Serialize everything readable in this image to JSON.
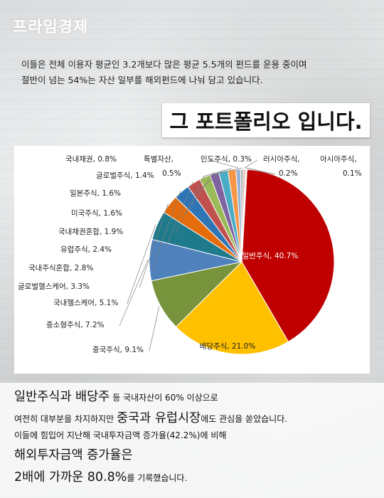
{
  "brand": {
    "logo_text": "프라임경제"
  },
  "intro": {
    "line1": "이들은 전체 이용자 평균인 3.2개보다 많은 평균 5.5개의 펀드를 운용 중이며",
    "line2": "절반이 넘는 54%는 자산 일부를 해외펀드에 나눠 담고 있습니다."
  },
  "headline": {
    "text": "그 포트폴리오 입니다."
  },
  "chart_data": {
    "type": "pie",
    "slices": [
      {
        "label": "일반주식, 40.7%",
        "name": "일반주식",
        "value": 40.7,
        "color": "#c00000"
      },
      {
        "label": "배당주식, 21.0%",
        "name": "배당주식",
        "value": 21.0,
        "color": "#ffc000"
      },
      {
        "label": "중국주식, 9.1%",
        "name": "중국주식",
        "value": 9.1,
        "color": "#77933c"
      },
      {
        "label": "중소형주식, 7.2%",
        "name": "중소형주식",
        "value": 7.2,
        "color": "#4f81bd"
      },
      {
        "label": "국내헬스케어, 5.1%",
        "name": "국내헬스케어",
        "value": 5.1,
        "color": "#1f7a8c"
      },
      {
        "label": "글로벌헬스케어, 3.3%",
        "name": "글로벌헬스케어",
        "value": 3.3,
        "color": "#e46c0a"
      },
      {
        "label": "국내주식혼합, 2.8%",
        "name": "국내주식혼합",
        "value": 2.8,
        "color": "#2e75b6"
      },
      {
        "label": "유럽주식, 2.4%",
        "name": "유럽주식",
        "value": 2.4,
        "color": "#c0504d"
      },
      {
        "label": "국내채권혼합, 1.9%",
        "name": "국내채권혼합",
        "value": 1.9,
        "color": "#9bbb59"
      },
      {
        "label": "미국주식, 1.6%",
        "name": "미국주식",
        "value": 1.6,
        "color": "#8064a2"
      },
      {
        "label": "일본주식, 1.6%",
        "name": "일본주식",
        "value": 1.6,
        "color": "#4bacc6"
      },
      {
        "label": "글로벌주식, 1.4%",
        "name": "글로벌주식",
        "value": 1.4,
        "color": "#f79646"
      },
      {
        "label": "국내채권, 0.8%",
        "name": "국내채권",
        "value": 0.8,
        "color": "#95b3d7"
      },
      {
        "label": "특별자산, 0.5%",
        "name": "특별자산",
        "value": 0.5,
        "color": "#b7b7b7"
      },
      {
        "label": "인도주식, 0.3%",
        "name": "인도주식",
        "value": 0.3,
        "color": "#d99694"
      },
      {
        "label": "러시아주식, 0.2%",
        "name": "러시아주식",
        "value": 0.2,
        "color": "#c3d69b"
      },
      {
        "label": "아시아주식, 0.1%",
        "name": "아시아주식",
        "value": 0.1,
        "color": "#b3a2c7"
      }
    ]
  },
  "summary": {
    "l1_a": "일반주식과 배당주",
    "l1_b": " 등 국내자산이 60% 이상으로",
    "l2_a": "여전히 대부분을 차지하지만 ",
    "l2_b": "중국과 유럽시장",
    "l2_c": "에도 관심을 쏟았습니다.",
    "l3": "이들에 힘입어 지난해 국내투자금액 증가율(42.2%)에 비해",
    "l4": "해외투자금액 증가율은",
    "l5_a": "2배에 가까운 80.8%",
    "l5_b": "를 기록했습니다."
  }
}
